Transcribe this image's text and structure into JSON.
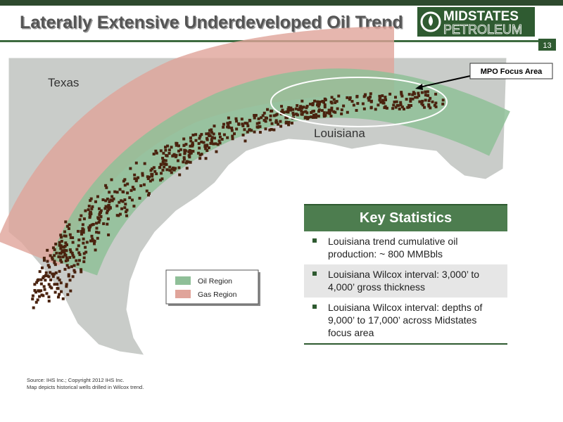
{
  "header": {
    "title": "Laterally Extensive Underdeveloped Oil Trend",
    "logo": {
      "line1": "MIDSTATES",
      "line2": "PETROLEUM"
    },
    "page_number": "13"
  },
  "map": {
    "labels": {
      "texas": "Texas",
      "louisiana": "Louisiana"
    },
    "callout": "MPO Focus Area",
    "legend": [
      {
        "label": "Oil Region",
        "color": "#8fbf98"
      },
      {
        "label": "Gas Region",
        "color": "#e0a49a"
      }
    ]
  },
  "key_statistics": {
    "title": "Key Statistics",
    "items": [
      "Louisiana trend cumulative oil production: ~ 800 MMBbls",
      "Louisiana Wilcox interval: 3,000’ to 4,000’ gross thickness",
      "Louisiana Wilcox interval: depths of 9,000’ to 17,000’ across Midstates focus area"
    ]
  },
  "source": [
    "Source:  IHS Inc.; Copyright 2012 IHS Inc.",
    "Map depicts historical wells drilled in Wilcox trend."
  ]
}
